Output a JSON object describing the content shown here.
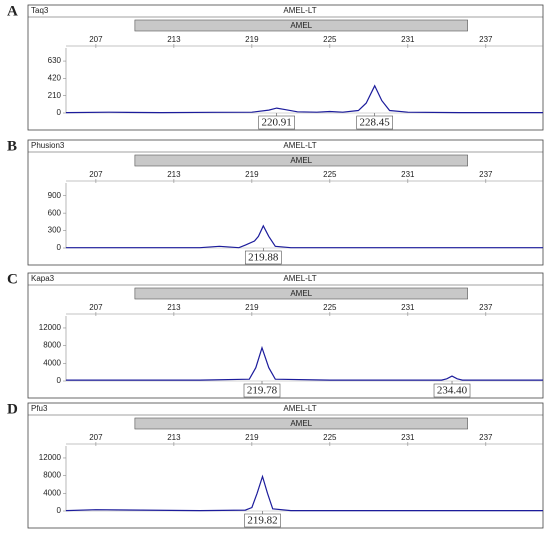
{
  "chart_data": [
    {
      "type": "line",
      "panel": "A",
      "title": "Taq3",
      "locus": "AMEL-LT",
      "marker": "AMEL",
      "marker_range": [
        210,
        235.6
      ],
      "xlim": [
        204.7,
        241.4
      ],
      "xticks": [
        207,
        213,
        219,
        225,
        231,
        237
      ],
      "ylim": [
        0,
        740
      ],
      "yticks": [
        0,
        210,
        420,
        630
      ],
      "series": [
        {
          "color": "#1c1c9c",
          "x": [
            204.7,
            208,
            212,
            216,
            219,
            220.3,
            220.91,
            221.6,
            222.5,
            224,
            225,
            226,
            227.2,
            227.8,
            228.45,
            229,
            229.6,
            231,
            235,
            241.4
          ],
          "values": [
            5,
            10,
            5,
            8,
            10,
            35,
            60,
            40,
            15,
            10,
            18,
            10,
            30,
            120,
            330,
            150,
            30,
            10,
            5,
            5
          ]
        }
      ],
      "peak_labels": [
        220.91,
        228.45
      ]
    },
    {
      "type": "line",
      "panel": "B",
      "title": "Phusion3",
      "locus": "AMEL-LT",
      "marker": "AMEL",
      "marker_range": [
        210,
        235.6
      ],
      "xlim": [
        204.7,
        241.4
      ],
      "xticks": [
        207,
        213,
        219,
        225,
        231,
        237
      ],
      "ylim": [
        0,
        1050
      ],
      "yticks": [
        0,
        300,
        600,
        900
      ],
      "series": [
        {
          "color": "#1c1c9c",
          "x": [
            204.7,
            210,
            215,
            216.5,
            218,
            218.5,
            219.2,
            219.5,
            219.88,
            220.3,
            220.8,
            222,
            230,
            241.4
          ],
          "values": [
            5,
            5,
            5,
            30,
            5,
            50,
            120,
            200,
            380,
            200,
            30,
            5,
            5,
            5
          ]
        }
      ],
      "peak_labels": [
        219.88
      ]
    },
    {
      "type": "line",
      "panel": "C",
      "title": "Kapa3",
      "locus": "AMEL-LT",
      "marker": "AMEL",
      "marker_range": [
        210,
        235.6
      ],
      "xlim": [
        204.7,
        241.4
      ],
      "xticks": [
        207,
        213,
        219,
        225,
        231,
        237
      ],
      "ylim": [
        0,
        13800
      ],
      "yticks": [
        0,
        4000,
        8000,
        12000
      ],
      "series": [
        {
          "color": "#1c1c9c",
          "x": [
            204.7,
            215,
            218.8,
            219.3,
            219.78,
            220.3,
            220.8,
            225,
            233.6,
            234.0,
            234.4,
            234.8,
            235.2,
            241.4
          ],
          "values": [
            200,
            200,
            400,
            3000,
            7500,
            3000,
            400,
            200,
            200,
            500,
            1100,
            500,
            200,
            200
          ]
        }
      ],
      "peak_labels": [
        219.78,
        {
          "value": 234.4,
          "label": "234.40"
        }
      ]
    },
    {
      "type": "line",
      "panel": "D",
      "title": "Pfu3",
      "locus": "AMEL-LT",
      "marker": "AMEL",
      "marker_range": [
        210,
        235.6
      ],
      "xlim": [
        204.7,
        241.4
      ],
      "xticks": [
        207,
        213,
        219,
        225,
        231,
        237
      ],
      "ylim": [
        0,
        13800
      ],
      "yticks": [
        0,
        4000,
        8000,
        12000
      ],
      "series": [
        {
          "color": "#1c1c9c",
          "x": [
            204.7,
            207,
            215,
            218.5,
            219,
            219.4,
            219.82,
            220.2,
            220.6,
            222,
            241.4
          ],
          "values": [
            100,
            300,
            100,
            200,
            800,
            4000,
            7800,
            4000,
            500,
            100,
            100
          ]
        }
      ],
      "peak_labels": [
        219.82
      ]
    }
  ]
}
